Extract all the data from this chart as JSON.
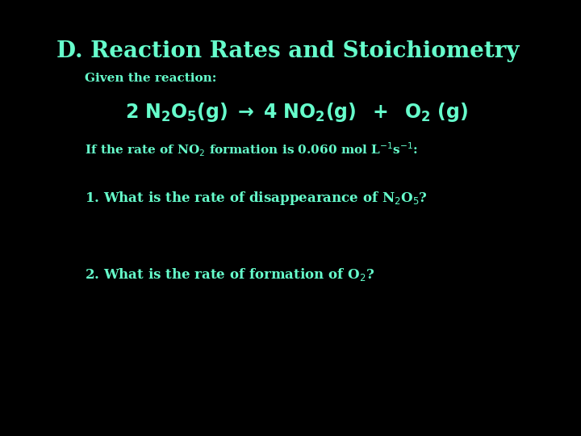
{
  "background_color": "#000000",
  "title": "D. Reaction Rates and Stoichiometry",
  "title_color": "#66ffcc",
  "title_fontsize": 20,
  "subtitle": "Given the reaction:",
  "subtitle_color": "#66ffcc",
  "subtitle_fontsize": 11,
  "reaction_color": "#66ffcc",
  "reaction_fontsize": 17,
  "condition_color": "#66ffcc",
  "condition_fontsize": 11,
  "q1_color": "#66ffcc",
  "q1_fontsize": 12,
  "q2_color": "#66ffcc",
  "q2_fontsize": 12
}
